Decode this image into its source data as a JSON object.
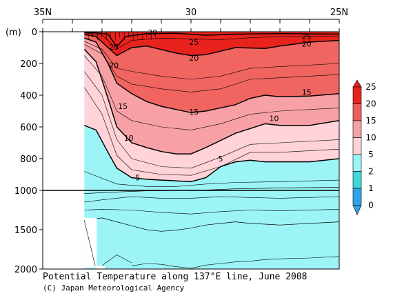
{
  "chart_data": {
    "type": "contour",
    "title": "Potential Temperature along 137°E line, June 2008",
    "credit": "(C) Japan Meteorological Agency",
    "ylabel": "(m)",
    "x_ticks": [
      {
        "lat": 35,
        "label": "35N"
      },
      {
        "lat": 30,
        "label": "30"
      },
      {
        "lat": 25,
        "label": "25N"
      }
    ],
    "xlim": [
      35,
      25
    ],
    "y_ticks_upper": [
      0,
      200,
      400,
      600,
      800,
      1000
    ],
    "y_ticks_lower": [
      1000,
      1500,
      2000
    ],
    "y_tick_labels": [
      "0",
      "200",
      "400",
      "600",
      "800",
      "1000",
      "1500",
      "2000"
    ],
    "ylim": [
      0,
      2000
    ],
    "axis_break_depth_m": 1000,
    "levels": [
      0,
      1,
      2,
      5,
      10,
      15,
      20,
      25
    ],
    "level_colors": [
      "#2ea4e8",
      "#3fd9dc",
      "#9cf4f7",
      "#ffd3d8",
      "#f7a1a6",
      "#ee5e5c",
      "#e8231d"
    ],
    "colorbar_labels": [
      "25",
      "20",
      "15",
      "10",
      "5",
      "2",
      "1",
      "0"
    ],
    "data_start_lat": 33.6,
    "isotherms": [
      {
        "temp": 25,
        "points": [
          [
            33.6,
            5
          ],
          [
            33.2,
            7
          ],
          [
            32.8,
            15
          ],
          [
            32.5,
            95
          ],
          [
            32.2,
            30
          ],
          [
            31.5,
            12
          ],
          [
            30.5,
            10
          ],
          [
            29.5,
            22
          ],
          [
            28.5,
            15
          ],
          [
            27,
            12
          ],
          [
            25,
            15
          ]
        ]
      },
      {
        "temp": 20,
        "points": [
          [
            33.6,
            18
          ],
          [
            33.2,
            30
          ],
          [
            32.8,
            100
          ],
          [
            32.5,
            150
          ],
          [
            32.0,
            100
          ],
          [
            31.5,
            90
          ],
          [
            30.5,
            135
          ],
          [
            30.0,
            150
          ],
          [
            29.5,
            145
          ],
          [
            28.5,
            100
          ],
          [
            27.5,
            105
          ],
          [
            27,
            90
          ],
          [
            26,
            65
          ],
          [
            25,
            55
          ]
        ]
      },
      {
        "temp": 15,
        "points": [
          [
            33.6,
            40
          ],
          [
            33.2,
            65
          ],
          [
            32.8,
            200
          ],
          [
            32.5,
            325
          ],
          [
            32.0,
            390
          ],
          [
            31.5,
            440
          ],
          [
            31.0,
            470
          ],
          [
            30.5,
            490
          ],
          [
            30.0,
            510
          ],
          [
            29.5,
            500
          ],
          [
            28.5,
            460
          ],
          [
            28.0,
            420
          ],
          [
            27.5,
            400
          ],
          [
            27,
            410
          ],
          [
            26,
            405
          ],
          [
            25,
            390
          ]
        ]
      },
      {
        "temp": 10,
        "points": [
          [
            33.6,
            110
          ],
          [
            33.2,
            190
          ],
          [
            32.8,
            420
          ],
          [
            32.5,
            600
          ],
          [
            32.0,
            700
          ],
          [
            31.5,
            730
          ],
          [
            31.0,
            755
          ],
          [
            30.5,
            770
          ],
          [
            30.0,
            770
          ],
          [
            29.5,
            730
          ],
          [
            28.5,
            640
          ],
          [
            28.0,
            610
          ],
          [
            27.5,
            580
          ],
          [
            27,
            590
          ],
          [
            26,
            590
          ],
          [
            25,
            560
          ]
        ]
      },
      {
        "temp": 5,
        "points": [
          [
            33.6,
            590
          ],
          [
            33.2,
            620
          ],
          [
            32.8,
            760
          ],
          [
            32.5,
            860
          ],
          [
            32.0,
            920
          ],
          [
            31.5,
            930
          ],
          [
            31.0,
            935
          ],
          [
            30.5,
            940
          ],
          [
            30.0,
            945
          ],
          [
            29.5,
            920
          ],
          [
            29.0,
            850
          ],
          [
            28.5,
            820
          ],
          [
            28.0,
            810
          ],
          [
            27.5,
            820
          ],
          [
            27,
            820
          ],
          [
            26,
            820
          ],
          [
            25,
            800
          ]
        ]
      },
      {
        "temp": 2,
        "points": [
          [
            33.6,
            1040
          ],
          [
            32.5,
            1020
          ],
          [
            31.5,
            1005
          ],
          [
            30.5,
            1000
          ],
          [
            29.5,
            998
          ],
          [
            28.5,
            990
          ],
          [
            27,
            985
          ],
          [
            25,
            980
          ]
        ]
      },
      {
        "temp": 1,
        "points": [
          [
            33.6,
            1380
          ],
          [
            33.0,
            1350
          ],
          [
            32.5,
            1400
          ],
          [
            32.0,
            1450
          ],
          [
            31.5,
            1500
          ],
          [
            31.0,
            1520
          ],
          [
            30.5,
            1505
          ],
          [
            30.0,
            1480
          ],
          [
            29.5,
            1440
          ],
          [
            29.0,
            1420
          ],
          [
            28.5,
            1400
          ],
          [
            28.0,
            1420
          ],
          [
            27.5,
            1430
          ],
          [
            27,
            1440
          ],
          [
            26,
            1420
          ],
          [
            25,
            1400
          ]
        ]
      }
    ],
    "thin_isotherms": [
      [
        [
          33.6,
          8
        ],
        [
          33.0,
          20
        ],
        [
          32.5,
          110
        ],
        [
          32.0,
          55
        ],
        [
          31.0,
          40
        ],
        [
          30.0,
          45
        ],
        [
          29.0,
          50
        ],
        [
          28,
          38
        ],
        [
          27,
          30
        ],
        [
          25,
          30
        ]
      ],
      [
        [
          33.6,
          60
        ],
        [
          33.0,
          110
        ],
        [
          32.5,
          230
        ],
        [
          32.0,
          250
        ],
        [
          31.0,
          280
        ],
        [
          30.0,
          300
        ],
        [
          29.0,
          280
        ],
        [
          28.0,
          230
        ],
        [
          27,
          220
        ],
        [
          25,
          200
        ]
      ],
      [
        [
          33.6,
          80
        ],
        [
          33.0,
          140
        ],
        [
          32.5,
          280
        ],
        [
          32.0,
          330
        ],
        [
          31.0,
          360
        ],
        [
          30.0,
          380
        ],
        [
          29.0,
          360
        ],
        [
          28.0,
          300
        ],
        [
          27,
          290
        ],
        [
          25,
          270
        ]
      ],
      [
        [
          33.6,
          150
        ],
        [
          33.0,
          280
        ],
        [
          32.5,
          500
        ],
        [
          32.0,
          560
        ],
        [
          31.0,
          600
        ],
        [
          30.0,
          620
        ],
        [
          29.0,
          580
        ],
        [
          28.0,
          520
        ],
        [
          27,
          500
        ],
        [
          25,
          480
        ]
      ],
      [
        [
          33.6,
          250
        ],
        [
          33.0,
          400
        ],
        [
          32.5,
          680
        ],
        [
          32.0,
          800
        ],
        [
          31.0,
          850
        ],
        [
          30.0,
          860
        ],
        [
          29.0,
          790
        ],
        [
          28.0,
          710
        ],
        [
          27,
          700
        ],
        [
          25,
          680
        ]
      ],
      [
        [
          33.6,
          350
        ],
        [
          33.0,
          520
        ],
        [
          32.5,
          780
        ],
        [
          32.0,
          870
        ],
        [
          31.0,
          900
        ],
        [
          30.0,
          905
        ],
        [
          29.0,
          850
        ],
        [
          28.0,
          760
        ],
        [
          27,
          760
        ],
        [
          25,
          740
        ]
      ],
      [
        [
          33.6,
          880
        ],
        [
          32.5,
          960
        ],
        [
          31.5,
          975
        ],
        [
          30.5,
          975
        ],
        [
          29.5,
          960
        ],
        [
          28.5,
          950
        ],
        [
          27,
          945
        ],
        [
          25,
          935
        ]
      ],
      [
        [
          33.6,
          1150
        ],
        [
          33.0,
          1120
        ],
        [
          32.0,
          1080
        ],
        [
          31.0,
          1100
        ],
        [
          30.0,
          1100
        ],
        [
          29.0,
          1080
        ],
        [
          28.0,
          1090
        ],
        [
          27,
          1100
        ],
        [
          25,
          1080
        ]
      ],
      [
        [
          33.6,
          1250
        ],
        [
          33.0,
          1240
        ],
        [
          32.0,
          1250
        ],
        [
          31.0,
          1280
        ],
        [
          30.0,
          1300
        ],
        [
          29.0,
          1270
        ],
        [
          28.0,
          1250
        ],
        [
          27,
          1260
        ],
        [
          25,
          1240
        ]
      ],
      [
        [
          32.0,
          1960
        ],
        [
          31.5,
          1930
        ],
        [
          31.0,
          1940
        ],
        [
          30.5,
          1970
        ],
        [
          30.0,
          1990
        ],
        [
          29.5,
          1950
        ],
        [
          29.0,
          1930
        ],
        [
          28.5,
          1910
        ],
        [
          28.0,
          1900
        ],
        [
          27.5,
          1880
        ],
        [
          27.0,
          1870
        ],
        [
          26.0,
          1860
        ],
        [
          25,
          1840
        ]
      ],
      [
        [
          33.0,
          1960
        ],
        [
          32.8,
          1900
        ],
        [
          32.5,
          1820
        ],
        [
          32.3,
          1860
        ],
        [
          32.0,
          1920
        ]
      ]
    ],
    "contour_labels": [
      {
        "text": "25",
        "lat": 32.6,
        "depth": 95
      },
      {
        "text": "20",
        "lat": 32.6,
        "depth": 210
      },
      {
        "text": "15",
        "lat": 32.3,
        "depth": 470
      },
      {
        "text": "10",
        "lat": 32.1,
        "depth": 670
      },
      {
        "text": "5",
        "lat": 31.8,
        "depth": 920
      },
      {
        "text": "25",
        "lat": 29.9,
        "depth": 65
      },
      {
        "text": "20",
        "lat": 29.9,
        "depth": 165
      },
      {
        "text": "15",
        "lat": 29.9,
        "depth": 505
      },
      {
        "text": "10",
        "lat": 27.2,
        "depth": 545
      },
      {
        "text": "5",
        "lat": 29.0,
        "depth": 800
      },
      {
        "text": "15",
        "lat": 26.1,
        "depth": 380
      },
      {
        "text": "25",
        "lat": 26.1,
        "depth": 30
      },
      {
        "text": "20",
        "lat": 26.1,
        "depth": 75
      },
      {
        "text": "30",
        "lat": 31.3,
        "depth": 5
      }
    ]
  }
}
